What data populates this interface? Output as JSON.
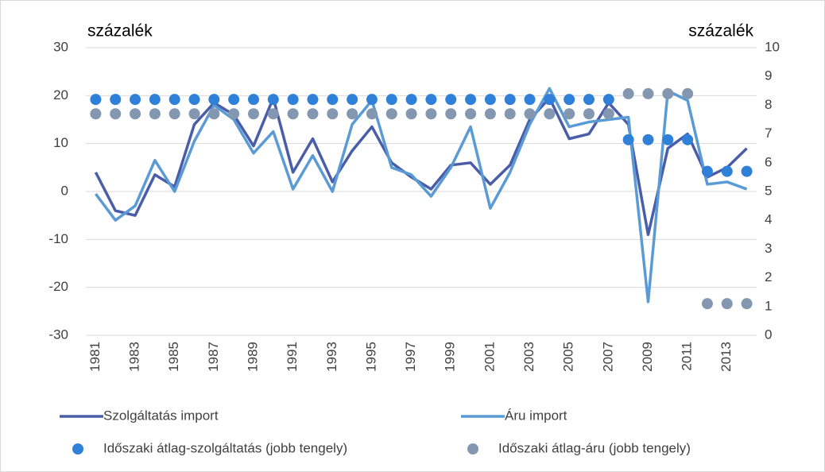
{
  "chart_data": {
    "type": "line",
    "y_label": "százalék",
    "y2_label": "százalék",
    "categories": [
      "1981",
      null,
      "1983",
      null,
      "1985",
      null,
      "1987",
      null,
      "1989",
      null,
      "1991",
      null,
      "1993",
      null,
      "1995",
      null,
      "1997",
      null,
      "1999",
      null,
      "2001",
      null,
      "2003",
      null,
      "2005",
      null,
      "2007",
      null,
      "2009",
      null,
      "2011",
      null,
      "2013",
      null
    ],
    "ylim": [
      -30,
      30
    ],
    "yticks": [
      -30,
      -20,
      -10,
      0,
      10,
      20,
      30
    ],
    "y2lim": [
      0,
      10
    ],
    "y2ticks": [
      0,
      1,
      2,
      3,
      4,
      5,
      6,
      7,
      8,
      9,
      10
    ],
    "grid": true,
    "series": [
      {
        "name": "Szolgáltatás import",
        "color": "#4a5da8",
        "type": "line",
        "values": [
          4,
          -4,
          -5,
          3.5,
          1,
          14,
          18.5,
          16,
          9.5,
          19.5,
          4,
          11,
          2,
          8.5,
          13.5,
          6,
          3,
          0.5,
          5.5,
          6,
          1.5,
          5.5,
          15,
          19.5,
          11,
          12,
          18.5,
          14,
          -9,
          9,
          12,
          3,
          5,
          9
        ]
      },
      {
        "name": "Áru import",
        "color": "#5b9bd5",
        "type": "line",
        "values": [
          -0.5,
          -6,
          -3,
          6.5,
          0,
          10.5,
          18,
          15,
          8,
          12.5,
          0.5,
          7.5,
          0,
          14,
          19,
          5,
          3.5,
          -1,
          5,
          13.5,
          -3.5,
          4,
          14,
          21.5,
          13.5,
          14.5,
          15,
          15.5,
          -23,
          21,
          19,
          1.5,
          2,
          0.5
        ]
      },
      {
        "name": "Időszaki átlag-szolgáltatás (jobb tengely)",
        "color": "#2f80d8",
        "type": "scatter",
        "axis": "y2",
        "values": [
          8.2,
          8.2,
          8.2,
          8.2,
          8.2,
          8.2,
          8.2,
          8.2,
          8.2,
          8.2,
          8.2,
          8.2,
          8.2,
          8.2,
          8.2,
          8.2,
          8.2,
          8.2,
          8.2,
          8.2,
          8.2,
          8.2,
          8.2,
          8.2,
          8.2,
          8.2,
          8.2,
          6.8,
          6.8,
          6.8,
          6.8,
          5.7,
          5.7,
          5.7
        ]
      },
      {
        "name": "Időszaki átlag-áru (jobb tengely)",
        "color": "#8497b0",
        "type": "scatter",
        "axis": "y2",
        "values": [
          7.7,
          7.7,
          7.7,
          7.7,
          7.7,
          7.7,
          7.7,
          7.7,
          7.7,
          7.7,
          7.7,
          7.7,
          7.7,
          7.7,
          7.7,
          7.7,
          7.7,
          7.7,
          7.7,
          7.7,
          7.7,
          7.7,
          7.7,
          7.7,
          7.7,
          7.7,
          7.7,
          8.4,
          8.4,
          8.4,
          8.4,
          1.1,
          1.1,
          1.1
        ]
      }
    ]
  }
}
